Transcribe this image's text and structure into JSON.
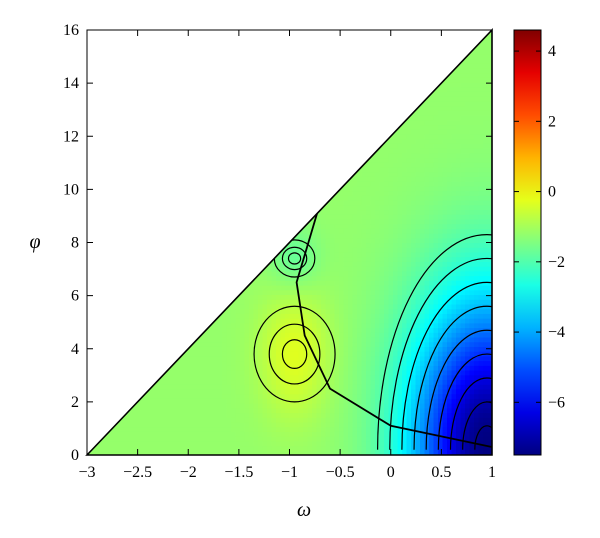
{
  "chart_data": {
    "type": "heatmap",
    "title": "",
    "xlabel": "ω",
    "ylabel": "φ",
    "xlim": [
      -3,
      1
    ],
    "ylim": [
      0,
      16
    ],
    "xticks": [
      -3,
      -2.5,
      -2,
      -1.5,
      -1,
      -0.5,
      0,
      0.5,
      1
    ],
    "xtick_labels": [
      "−3",
      "−2.5",
      "−2",
      "−1.5",
      "−1",
      "−0.5",
      "0",
      "0.5",
      "1"
    ],
    "yticks": [
      0,
      2,
      4,
      6,
      8,
      10,
      12,
      14,
      16
    ],
    "ytick_labels": [
      "0",
      "2",
      "4",
      "6",
      "8",
      "10",
      "12",
      "14",
      "16"
    ],
    "domain": "triangle bounded by φ = 0 and φ = 4(ω + 3)",
    "colormap": "jet",
    "colorbar": {
      "range": [
        -7.5,
        4.6
      ],
      "ticks": [
        4,
        2,
        0,
        -2,
        -4,
        -6
      ],
      "tick_labels": [
        "4",
        "2",
        "0",
        "−2",
        "−4",
        "−6"
      ]
    },
    "features": {
      "local_max": {
        "omega": -0.95,
        "phi": 3.8,
        "value": -0.3
      },
      "vortex": {
        "omega": -0.95,
        "phi": 7.4,
        "value": -1.5
      },
      "global_min": {
        "omega": 0.95,
        "phi": 0.4,
        "value": -7.5
      },
      "separatrix": [
        [
          -0.72,
          9.2
        ],
        [
          -0.93,
          6.5
        ],
        [
          -0.85,
          4.5
        ],
        [
          -0.6,
          2.5
        ],
        [
          0,
          1.1
        ],
        [
          1,
          0.3
        ]
      ]
    },
    "grid": false,
    "legend": "none"
  }
}
